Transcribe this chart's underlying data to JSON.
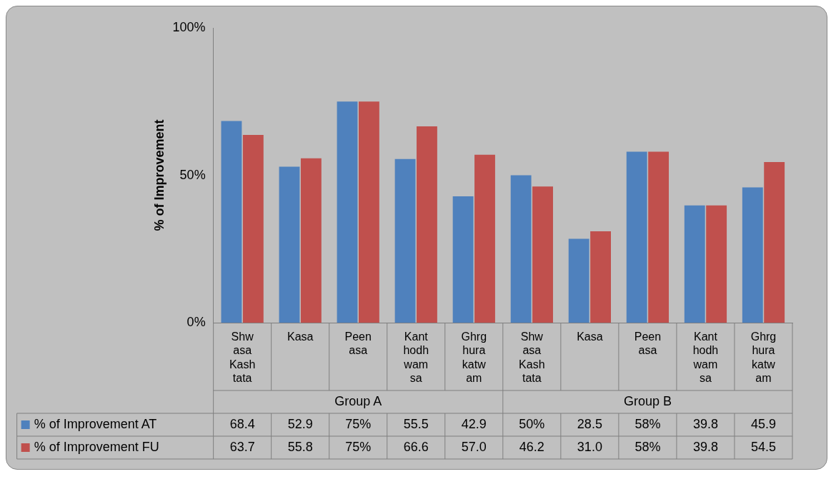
{
  "chart_data": {
    "type": "bar",
    "ylabel": "% of Improvement",
    "categories": [
      "Shwasa Kashtata",
      "Kasa",
      "Peenasa",
      "Kanthodhwamsa",
      "Ghrghurakatwam",
      "Shwasa Kashtata",
      "Kasa",
      "Peenasa",
      "Kanthodhwamsa",
      "Ghrghurakatwam"
    ],
    "annotations": [
      "Group A",
      "Group B"
    ],
    "series": [
      {
        "name": "% of Improvement AT",
        "color": "#4f81bd",
        "values": [
          68.4,
          52.9,
          75,
          55.5,
          42.9,
          50,
          28.5,
          58,
          39.8,
          45.9
        ],
        "value_labels": [
          "68.4",
          "52.9",
          "75%",
          "55.5",
          "42.9",
          "50%",
          "28.5",
          "58%",
          "39.8",
          "45.9"
        ]
      },
      {
        "name": "% of Improvement FU",
        "color": "#c0504d",
        "values": [
          63.7,
          55.8,
          75,
          66.6,
          57.0,
          46.2,
          31.0,
          58,
          39.8,
          54.5
        ],
        "value_labels": [
          "63.7",
          "55.8",
          "75%",
          "66.6",
          "57.0",
          "46.2",
          "31.0",
          "58%",
          "39.8",
          "54.5"
        ]
      }
    ],
    "ylim": [
      0,
      100
    ],
    "yticks": [
      {
        "value": 0,
        "label": "0%"
      },
      {
        "value": 50,
        "label": "50%"
      },
      {
        "value": 100,
        "label": "100%"
      }
    ],
    "legend": "bottom"
  }
}
